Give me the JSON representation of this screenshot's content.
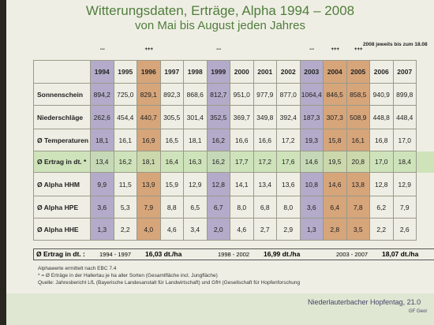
{
  "header": {
    "title": "Witterungsdaten, Erträge, Alpha 1994 – 2008",
    "subtitle": "von Mai bis August jeden Jahres",
    "note": "2008 jeweils bis zum 18.08"
  },
  "table": {
    "years": [
      "1994",
      "1995",
      "1996",
      "1997",
      "1998",
      "1999",
      "2000",
      "2001",
      "2002",
      "2003",
      "2004",
      "2005",
      "2006",
      "2007"
    ],
    "markers": [
      "---",
      null,
      "+++",
      null,
      null,
      "---",
      null,
      null,
      null,
      "---",
      "+++",
      "+++",
      null,
      null
    ],
    "column_colors": [
      "#b3abc9",
      null,
      "#d6a57a",
      null,
      null,
      "#b3abc9",
      null,
      null,
      null,
      "#b3abc9",
      "#d6a57a",
      "#d6a57a",
      null,
      null
    ],
    "highlight_row": 3,
    "highlight_color": "#c9e0b4",
    "rows": [
      {
        "label": "Sonnenschein",
        "values": [
          "894,2",
          "725,0",
          "829,1",
          "892,3",
          "868,6",
          "812,7",
          "951,0",
          "977,9",
          "877,0",
          "1064,4",
          "846,5",
          "858,5",
          "940,9",
          "899,8"
        ]
      },
      {
        "label": "Niederschläge",
        "values": [
          "262,6",
          "454,4",
          "440,7",
          "305,5",
          "301,4",
          "352,5",
          "369,7",
          "349,8",
          "392,4",
          "187,3",
          "307,3",
          "508,9",
          "448,8",
          "448,4"
        ]
      },
      {
        "label": "Ø Temperaturen",
        "values": [
          "18,1",
          "16,1",
          "16,9",
          "16,5",
          "18,1",
          "16,2",
          "16,6",
          "16,6",
          "17,2",
          "19,3",
          "15,8",
          "16,1",
          "16,8",
          "17,0"
        ]
      },
      {
        "label": "Ø Ertrag in dt. *",
        "values": [
          "13,4",
          "16,2",
          "18,1",
          "16,4",
          "16,3",
          "16,2",
          "17,7",
          "17,2",
          "17,6",
          "14,6",
          "19,5",
          "20,8",
          "17,0",
          "18,4"
        ]
      },
      {
        "label": "Ø Alpha HHM",
        "values": [
          "9,9",
          "11,5",
          "13,9",
          "15,9",
          "12,9",
          "12,8",
          "14,1",
          "13,4",
          "13,6",
          "10,8",
          "14,6",
          "13,8",
          "12,8",
          "12,9"
        ]
      },
      {
        "label": "Ø Alpha HPE",
        "values": [
          "3,6",
          "5,3",
          "7,9",
          "8,8",
          "6,5",
          "6,7",
          "8,0",
          "6,8",
          "8,0",
          "3,6",
          "6,4",
          "7,8",
          "6,2",
          "7,9"
        ]
      },
      {
        "label": "Ø Alpha HHE",
        "values": [
          "1,3",
          "2,2",
          "4,0",
          "4,6",
          "3,4",
          "2,0",
          "4,6",
          "2,7",
          "2,9",
          "1,3",
          "2,8",
          "3,5",
          "2,2",
          "2,6"
        ]
      }
    ],
    "summary": {
      "label": "Ø Ertrag in dt. :",
      "periods": [
        {
          "range": "1994 - 1997",
          "value": "16,03 dt./ha"
        },
        {
          "range": "1998 - 2002",
          "value": "16,99 dt./ha"
        },
        {
          "range": "2003 - 2007",
          "value": "18,07 dt./ha"
        }
      ]
    }
  },
  "notes": [
    "Alphawerte ermittelt nach EBC 7.4",
    "* = Ø Erträge in der Hallertau je ha aller Sorten (Gesamtfläche incl. Jungfläche)",
    "Quelle: Jahresbericht LfL (Bayerische Landesanstalt für Landwirtschaft) und GfH (Gesellschaft für Hopfenforschung"
  ],
  "footer": {
    "event": "Niederlauterbacher Hopfentag, 21.0",
    "author": "GF Geor"
  }
}
